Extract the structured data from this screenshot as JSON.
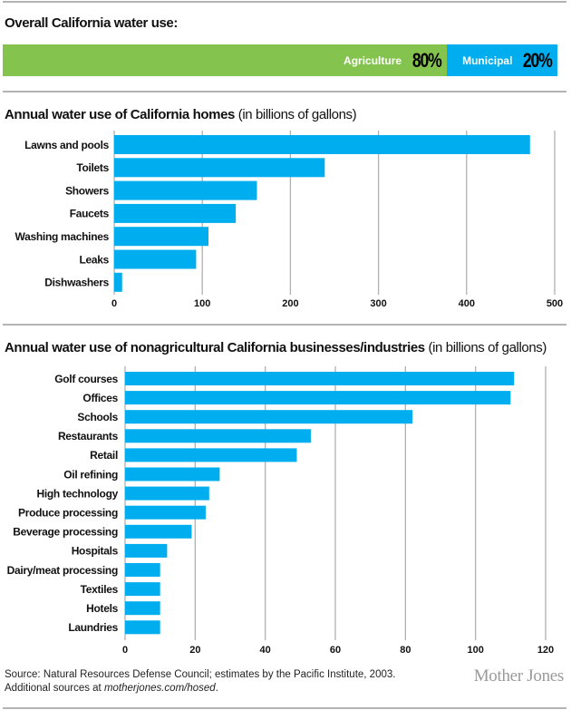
{
  "colors": {
    "agriculture": "#84c44e",
    "municipal": "#00aeef",
    "bar": "#00aeef",
    "grid": "#b0b0b0"
  },
  "overall": {
    "title": "Overall California water use:",
    "segments": [
      {
        "label": "Agriculture",
        "value_text": "80%",
        "share": 0.8
      },
      {
        "label": "Municipal",
        "value_text": "20%",
        "share": 0.2
      }
    ]
  },
  "homes": {
    "title_bold": "Annual water use of California homes",
    "title_sub": " (in billions of gallons)"
  },
  "business": {
    "title_bold": "Annual water use of nonagricultural California businesses/industries",
    "title_sub": " (in billions of gallons)"
  },
  "footer": {
    "source_line1": "Source: Natural Resources Defense Council; estimates by the Pacific Institute, 2003.",
    "source_line2_prefix": "Additional sources at ",
    "source_link": "motherjones.com/hosed",
    "source_line2_suffix": ".",
    "logo": "Mother Jones"
  },
  "chart_data": [
    {
      "type": "pie",
      "title": "Overall California water use:",
      "categories": [
        "Agriculture",
        "Municipal"
      ],
      "values": [
        80,
        20
      ],
      "unit": "%"
    },
    {
      "type": "bar",
      "orientation": "horizontal",
      "title": "Annual water use of California homes (in billions of gallons)",
      "categories": [
        "Lawns and pools",
        "Toilets",
        "Showers",
        "Faucets",
        "Washing machines",
        "Leaks",
        "Dishwashers"
      ],
      "values": [
        472,
        239,
        162,
        138,
        107,
        93,
        9
      ],
      "xlabel": "",
      "ylabel": "",
      "xlim": [
        0,
        500
      ],
      "xticks": [
        0,
        100,
        200,
        300,
        400,
        500
      ],
      "grid": true
    },
    {
      "type": "bar",
      "orientation": "horizontal",
      "title": "Annual water use of nonagricultural California businesses/industries (in billions of gallons)",
      "categories": [
        "Golf courses",
        "Offices",
        "Schools",
        "Restaurants",
        "Retail",
        "Oil refining",
        "High technology",
        "Produce processing",
        "Beverage processing",
        "Hospitals",
        "Dairy/meat processing",
        "Textiles",
        "Hotels",
        "Laundries"
      ],
      "values": [
        111,
        110,
        82,
        53,
        49,
        27,
        24,
        23,
        19,
        12,
        10,
        10,
        10,
        10
      ],
      "xlabel": "",
      "ylabel": "",
      "xlim": [
        0,
        120
      ],
      "xticks": [
        0,
        20,
        40,
        60,
        80,
        100,
        120
      ],
      "grid": true
    }
  ]
}
